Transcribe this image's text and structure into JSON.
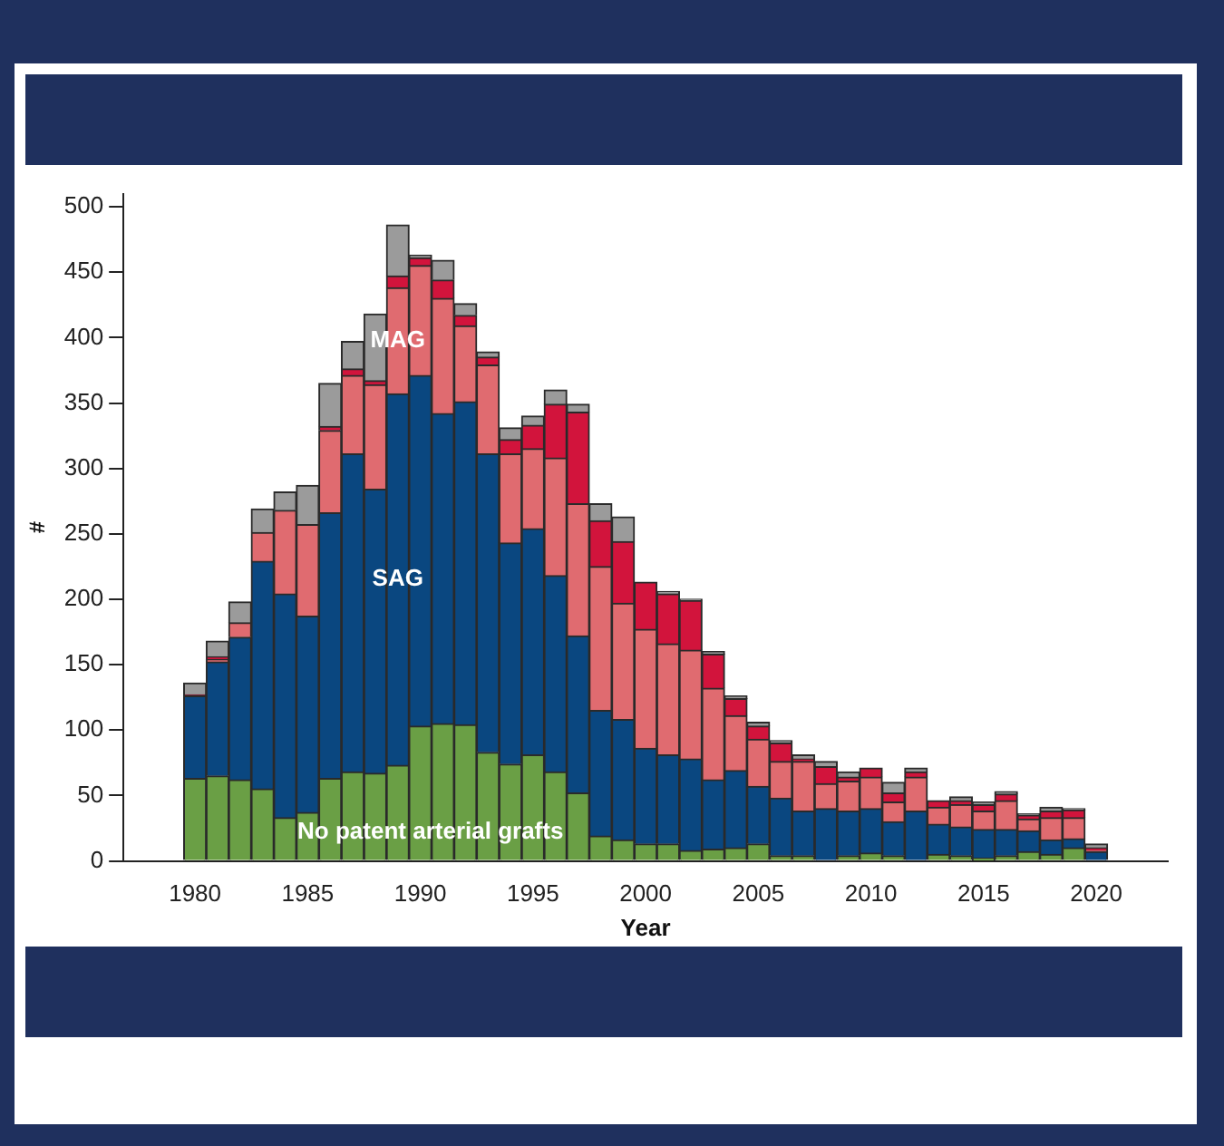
{
  "chart_data": {
    "type": "bar",
    "stacked": true,
    "xlabel": "Year",
    "ylabel": "#",
    "x": [
      1980,
      1981,
      1982,
      1983,
      1984,
      1985,
      1986,
      1987,
      1988,
      1989,
      1990,
      1991,
      1992,
      1993,
      1994,
      1995,
      1996,
      1997,
      1998,
      1999,
      2000,
      2001,
      2002,
      2003,
      2004,
      2005,
      2006,
      2007,
      2008,
      2009,
      2010,
      2011,
      2012,
      2013,
      2014,
      2015,
      2016,
      2017,
      2018,
      2019,
      2020
    ],
    "xlim": [
      1979.4,
      2020.6
    ],
    "xticks": [
      1980,
      1985,
      1990,
      1995,
      2000,
      2005,
      2010,
      2015,
      2020
    ],
    "ylim": [
      0,
      510
    ],
    "yticks": [
      0,
      50,
      100,
      150,
      200,
      250,
      300,
      350,
      400,
      450,
      500
    ],
    "grid": false,
    "legend": false,
    "series": [
      {
        "name": "No patent arterial grafts",
        "color": "#6a9f45",
        "values": [
          63,
          65,
          62,
          55,
          33,
          37,
          63,
          68,
          67,
          73,
          103,
          105,
          104,
          83,
          74,
          81,
          68,
          52,
          19,
          16,
          13,
          13,
          8,
          9,
          10,
          13,
          4,
          4,
          0,
          4,
          6,
          4,
          0,
          5,
          4,
          2,
          4,
          7,
          5,
          10,
          0
        ]
      },
      {
        "name": "SAG",
        "color": "#0a4780",
        "values": [
          63,
          87,
          109,
          174,
          171,
          150,
          203,
          243,
          217,
          284,
          268,
          237,
          247,
          228,
          169,
          173,
          150,
          120,
          96,
          92,
          73,
          68,
          70,
          53,
          59,
          44,
          44,
          34,
          40,
          34,
          34,
          26,
          38,
          23,
          22,
          22,
          20,
          16,
          11,
          7,
          7
        ]
      },
      {
        "name": "MAG",
        "color": "#e06b70",
        "values": [
          0,
          2,
          11,
          22,
          64,
          70,
          63,
          60,
          80,
          81,
          84,
          88,
          58,
          68,
          68,
          61,
          90,
          101,
          110,
          89,
          91,
          85,
          83,
          70,
          42,
          36,
          28,
          38,
          19,
          23,
          24,
          15,
          26,
          13,
          17,
          14,
          22,
          9,
          17,
          16,
          1
        ]
      },
      {
        "color": "#d2143c",
        "values": [
          1,
          2,
          0,
          0,
          0,
          0,
          3,
          5,
          3,
          9,
          6,
          14,
          8,
          6,
          11,
          18,
          41,
          70,
          35,
          47,
          36,
          38,
          38,
          26,
          13,
          10,
          14,
          2,
          13,
          3,
          7,
          7,
          4,
          5,
          3,
          5,
          5,
          3,
          5,
          6,
          2
        ]
      },
      {
        "color": "#9b9b9b",
        "values": [
          9,
          12,
          16,
          18,
          14,
          30,
          33,
          21,
          51,
          39,
          2,
          15,
          9,
          4,
          9,
          7,
          11,
          6,
          13,
          19,
          0,
          2,
          1,
          2,
          2,
          3,
          2,
          3,
          4,
          4,
          0,
          8,
          3,
          0,
          3,
          2,
          2,
          1,
          3,
          1,
          3
        ]
      }
    ]
  }
}
